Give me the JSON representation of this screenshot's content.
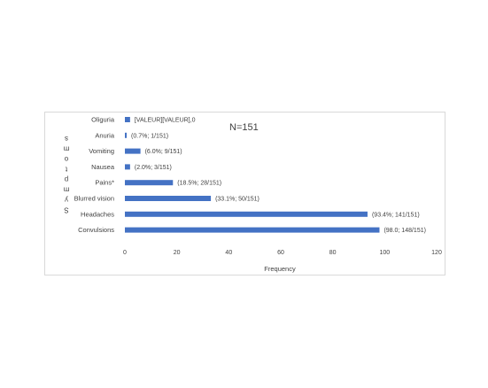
{
  "chart_data": {
    "type": "bar",
    "orientation": "horizontal",
    "categories": [
      "Oliguria",
      "Anuria",
      "Vomiting",
      "Nausea",
      "Pains*",
      "Blurred vision",
      "Headaches",
      "Convulsions"
    ],
    "values": [
      2,
      0.7,
      6,
      2,
      18.5,
      33.1,
      93.4,
      98
    ],
    "data_labels": [
      "[VALEUR][VALEUR],0",
      "(0.7%; 1/151)",
      "(6.0%; 9/151)",
      "(2.0%; 3/151)",
      "(18.5%; 28/151)",
      "(33.1%; 50/151)",
      "(93.4%; 141/151)",
      "(98.0; 148/151)"
    ],
    "annotation": "N=151",
    "xlabel": "Frequency",
    "ylabel": "Symptoms",
    "xlim": [
      0,
      120
    ],
    "xticks": [
      "0",
      "20",
      "40",
      "60",
      "80",
      "100",
      "120"
    ],
    "bar_color": "#4472c4",
    "grid": false,
    "legend": "none"
  }
}
